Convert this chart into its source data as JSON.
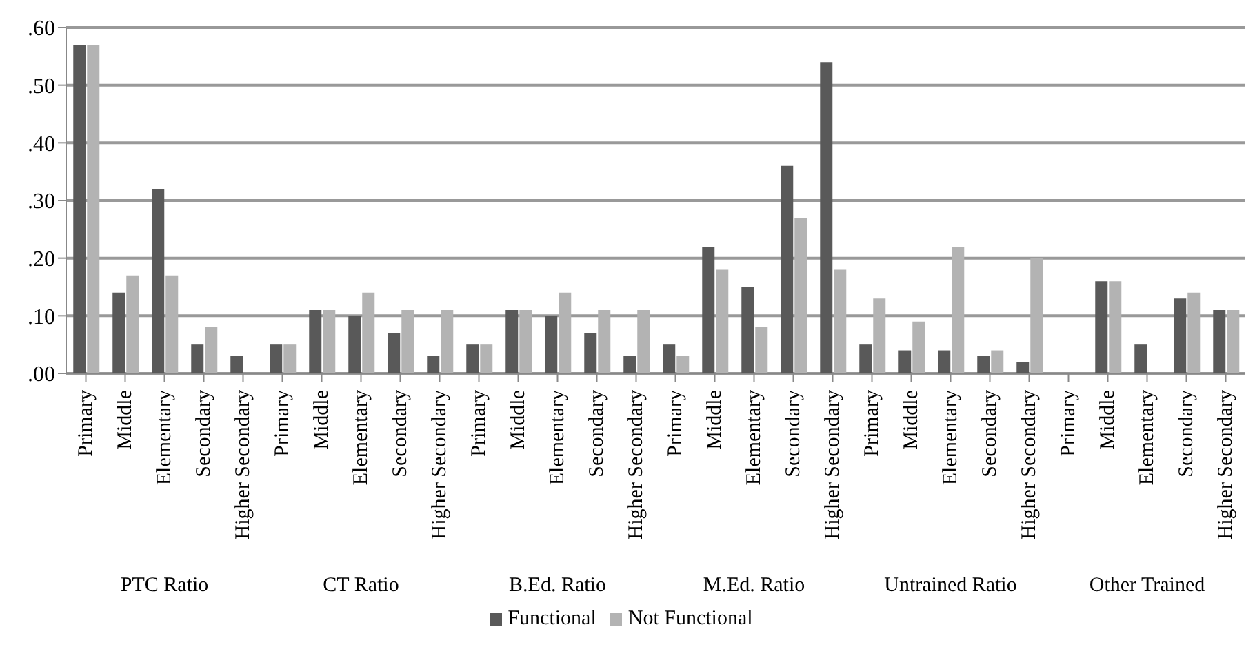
{
  "chart_data": {
    "type": "bar",
    "categories": [
      "Primary",
      "Middle",
      "Elementary",
      "Secondary",
      "Higher Secondary",
      "Primary",
      "Middle",
      "Elementary",
      "Secondary",
      "Higher Secondary",
      "Primary",
      "Middle",
      "Elementary",
      "Secondary",
      "Higher Secondary",
      "Primary",
      "Middle",
      "Elementary",
      "Secondary",
      "Higher Secondary",
      "Primary",
      "Middle",
      "Elementary",
      "Secondary",
      "Higher Secondary",
      "Primary",
      "Middle",
      "Elementary",
      "Secondary",
      "Higher Secondary"
    ],
    "series": [
      {
        "name": "Functional",
        "color": "#595959",
        "values": [
          0.57,
          0.14,
          0.32,
          0.05,
          0.03,
          0.05,
          0.11,
          0.1,
          0.07,
          0.03,
          0.05,
          0.11,
          0.1,
          0.07,
          0.03,
          0.05,
          0.22,
          0.15,
          0.36,
          0.54,
          0.05,
          0.04,
          0.04,
          0.03,
          0.02,
          0.0,
          0.16,
          0.05,
          0.13,
          0.11
        ]
      },
      {
        "name": "Not Functional",
        "color": "#b3b3b3",
        "values": [
          0.57,
          0.17,
          0.17,
          0.08,
          0.0,
          0.05,
          0.11,
          0.14,
          0.11,
          0.11,
          0.05,
          0.11,
          0.14,
          0.11,
          0.11,
          0.03,
          0.18,
          0.08,
          0.27,
          0.18,
          0.13,
          0.09,
          0.22,
          0.04,
          0.2,
          0.0,
          0.16,
          0.0,
          0.14,
          0.11
        ]
      }
    ],
    "annotations": [
      "PTC Ratio",
      "CT Ratio",
      "B.Ed. Ratio",
      "M.Ed. Ratio",
      "Untrained Ratio",
      "Other Trained"
    ],
    "ylim": [
      0,
      0.6
    ],
    "yticks": [
      {
        "value": 0,
        "label": ".00"
      },
      {
        "value": 0.1,
        "label": ".10"
      },
      {
        "value": 0.2,
        "label": ".20"
      },
      {
        "value": 0.3,
        "label": ".30"
      },
      {
        "value": 0.4,
        "label": ".40"
      },
      {
        "value": 0.5,
        "label": ".50"
      },
      {
        "value": 0.6,
        "label": ".60"
      }
    ],
    "grid": "y",
    "legend": "bottom"
  }
}
